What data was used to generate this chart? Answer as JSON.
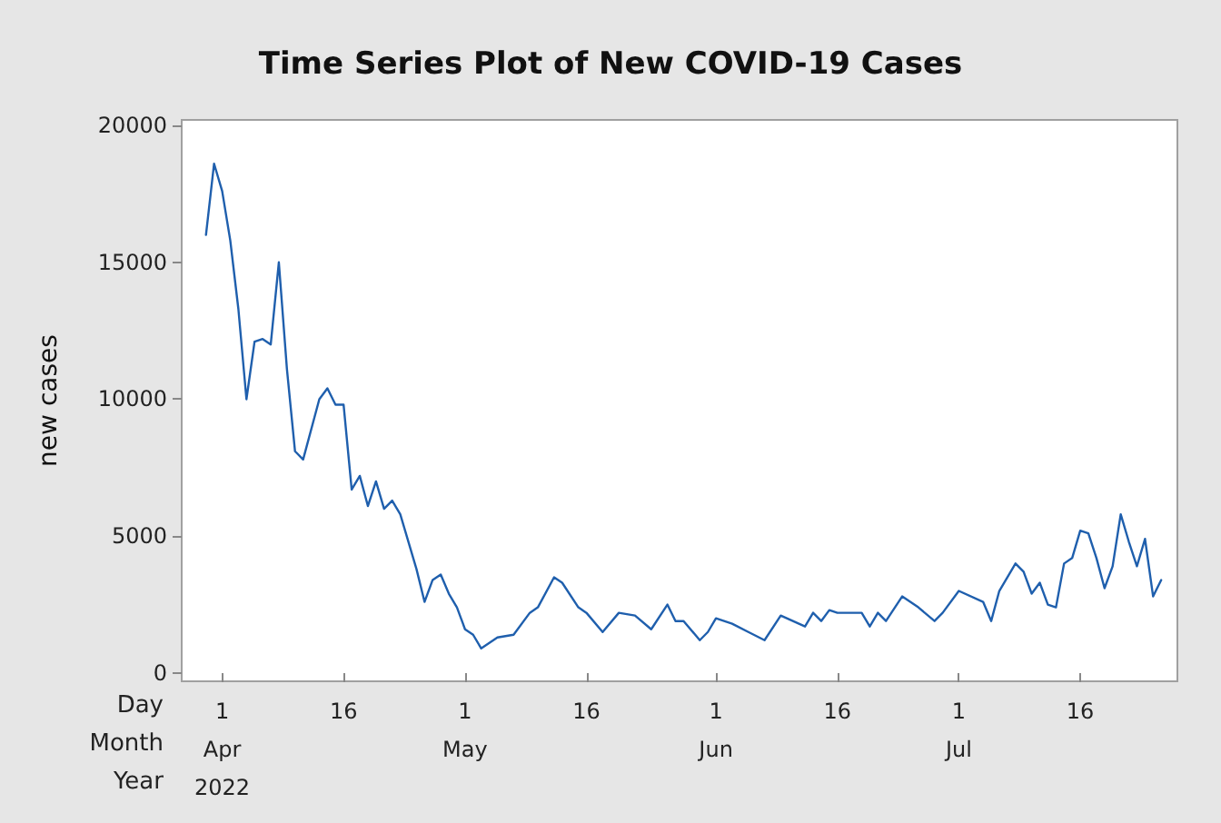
{
  "chart_data": {
    "type": "line",
    "title": "Time Series Plot of New COVID-19 Cases",
    "ylabel": "new cases",
    "annotations": [
      "Day",
      "Month",
      "Year"
    ],
    "x": [
      "2022-03-30",
      "2022-03-31",
      "2022-04-01",
      "2022-04-02",
      "2022-04-03",
      "2022-04-04",
      "2022-04-05",
      "2022-04-06",
      "2022-04-07",
      "2022-04-08",
      "2022-04-09",
      "2022-04-10",
      "2022-04-11",
      "2022-04-13",
      "2022-04-14",
      "2022-04-15",
      "2022-04-16",
      "2022-04-17",
      "2022-04-18",
      "2022-04-19",
      "2022-04-20",
      "2022-04-21",
      "2022-04-22",
      "2022-04-23",
      "2022-04-25",
      "2022-04-26",
      "2022-04-27",
      "2022-04-28",
      "2022-04-29",
      "2022-04-30",
      "2022-05-01",
      "2022-05-02",
      "2022-05-03",
      "2022-05-05",
      "2022-05-07",
      "2022-05-09",
      "2022-05-10",
      "2022-05-12",
      "2022-05-13",
      "2022-05-15",
      "2022-05-16",
      "2022-05-18",
      "2022-05-20",
      "2022-05-22",
      "2022-05-24",
      "2022-05-26",
      "2022-05-27",
      "2022-05-28",
      "2022-05-30",
      "2022-05-31",
      "2022-06-01",
      "2022-06-03",
      "2022-06-05",
      "2022-06-07",
      "2022-06-09",
      "2022-06-12",
      "2022-06-13",
      "2022-06-14",
      "2022-06-15",
      "2022-06-16",
      "2022-06-18",
      "2022-06-19",
      "2022-06-20",
      "2022-06-21",
      "2022-06-22",
      "2022-06-24",
      "2022-06-26",
      "2022-06-28",
      "2022-06-29",
      "2022-07-01",
      "2022-07-04",
      "2022-07-05",
      "2022-07-06",
      "2022-07-08",
      "2022-07-09",
      "2022-07-10",
      "2022-07-11",
      "2022-07-12",
      "2022-07-13",
      "2022-07-14",
      "2022-07-15",
      "2022-07-16",
      "2022-07-17",
      "2022-07-18",
      "2022-07-19",
      "2022-07-20",
      "2022-07-21",
      "2022-07-22",
      "2022-07-23",
      "2022-07-24",
      "2022-07-25",
      "2022-07-26"
    ],
    "series": [
      {
        "color": "#1f5fad",
        "values": [
          16000,
          18600,
          17600,
          15800,
          13300,
          10000,
          12100,
          12200,
          12000,
          15000,
          11100,
          8100,
          7800,
          10000,
          10400,
          9800,
          9800,
          6700,
          7200,
          6100,
          7000,
          6000,
          6300,
          5800,
          3800,
          2600,
          3400,
          3600,
          2900,
          2400,
          1600,
          1400,
          900,
          1300,
          1400,
          2200,
          2400,
          3500,
          3300,
          2400,
          2200,
          1500,
          2200,
          2100,
          1600,
          2500,
          1900,
          1900,
          1200,
          1500,
          2000,
          1800,
          1500,
          1200,
          2100,
          1700,
          2200,
          1900,
          2300,
          2200,
          2200,
          2200,
          1700,
          2200,
          1900,
          2800,
          2400,
          1900,
          2200,
          3000,
          2600,
          1900,
          3000,
          4000,
          3700,
          2900,
          3300,
          2500,
          2400,
          4000,
          4200,
          5200,
          5100,
          4200,
          3100,
          3900,
          5800,
          4800,
          3900,
          4900,
          2800,
          3400
        ]
      }
    ],
    "xlim": [
      "2022-03-27",
      "2022-07-28"
    ],
    "xticks": [
      {
        "value": "2022-04-01",
        "label": "1\nApr\n2022"
      },
      {
        "value": "2022-04-16",
        "label": "16"
      },
      {
        "value": "2022-05-01",
        "label": "1\nMay"
      },
      {
        "value": "2022-05-16",
        "label": "16"
      },
      {
        "value": "2022-06-01",
        "label": "1\nJun"
      },
      {
        "value": "2022-06-16",
        "label": "16"
      },
      {
        "value": "2022-07-01",
        "label": "1\nJul"
      },
      {
        "value": "2022-07-16",
        "label": "16"
      }
    ],
    "ylim": [
      -300,
      20200
    ],
    "yticks": [
      0,
      5000,
      10000,
      15000,
      20000
    ],
    "grid": false,
    "marker": "none",
    "line_style": "solid"
  }
}
